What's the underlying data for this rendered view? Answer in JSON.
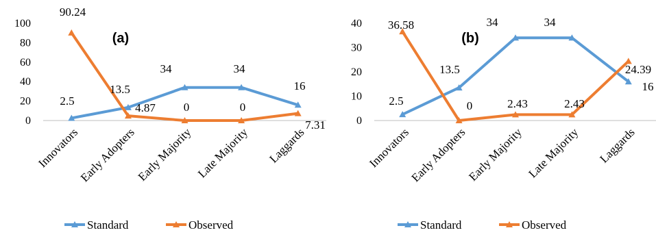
{
  "colors": {
    "standard": "#5b9bd5",
    "observed": "#ed7d31"
  },
  "chart_data": [
    {
      "type": "line",
      "title": "(a)",
      "categories": [
        "Innovators",
        "Early Adopters",
        "Early Majority",
        "Late Majority",
        "Laggards"
      ],
      "ylim": [
        0,
        100
      ],
      "yticks": [
        0,
        20,
        40,
        60,
        80,
        100
      ],
      "grid": false,
      "legend": "bottom",
      "series": [
        {
          "name": "Standard",
          "values": [
            2.5,
            13.5,
            34,
            34,
            16
          ],
          "labels": [
            "2.5",
            "13.5",
            "34",
            "34",
            "16"
          ]
        },
        {
          "name": "Observed",
          "values": [
            90.24,
            4.87,
            0,
            0,
            7.31
          ],
          "labels": [
            "90.24",
            "4.87",
            "0",
            "0",
            "7.31"
          ]
        }
      ]
    },
    {
      "type": "line",
      "title": "(b)",
      "categories": [
        "Innovators",
        "Early Adopters",
        "Early Majority",
        "Late Majority",
        "Laggards"
      ],
      "ylim": [
        0,
        40
      ],
      "yticks": [
        0,
        10,
        20,
        30,
        40
      ],
      "grid": false,
      "legend": "bottom",
      "series": [
        {
          "name": "Standard",
          "values": [
            2.5,
            13.5,
            34,
            34,
            16
          ],
          "labels": [
            "2.5",
            "13.5",
            "34",
            "34",
            "16"
          ]
        },
        {
          "name": "Observed",
          "values": [
            36.58,
            0,
            2.43,
            2.43,
            24.39
          ],
          "labels": [
            "36.58",
            "0",
            "2.43",
            "2.43",
            "24.39"
          ]
        }
      ]
    }
  ]
}
